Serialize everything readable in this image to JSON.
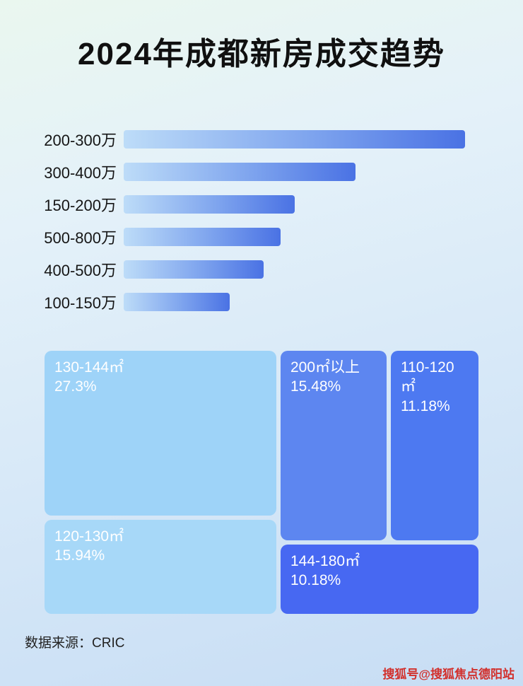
{
  "page": {
    "title": "2024年成都新房成交趋势",
    "source_label": "数据来源：CRIC",
    "watermark": "搜狐号@搜狐焦点德阳站"
  },
  "colors": {
    "bar_gradient_start": "#bddcf8",
    "bar_gradient_end": "#4a72e4",
    "watermark_red": "#d2302c"
  },
  "chart_data": [
    {
      "type": "bar",
      "orientation": "horizontal",
      "title": "2024年成都新房成交趋势",
      "categories": [
        "200-300万",
        "300-400万",
        "150-200万",
        "500-800万",
        "400-500万",
        "100-150万"
      ],
      "values_relative": [
        100,
        68,
        50,
        46,
        41,
        31
      ],
      "value_note": "no axis shown; values are bar lengths relative to longest bar = 100",
      "grid": false,
      "legend": false
    },
    {
      "type": "treemap",
      "title": "",
      "items": [
        {
          "label": "130-144㎡",
          "value": 27.3,
          "color": "#9ed3f8"
        },
        {
          "label": "200㎡以上",
          "value": 15.48,
          "color": "#5d86f0"
        },
        {
          "label": "110-120㎡",
          "value": 11.18,
          "color": "#4d79f1"
        },
        {
          "label": "120-130㎡",
          "value": 15.94,
          "color": "#a7d8f8"
        },
        {
          "label": "144-180㎡",
          "value": 10.18,
          "color": "#4768f2"
        }
      ],
      "value_unit": "%"
    }
  ]
}
